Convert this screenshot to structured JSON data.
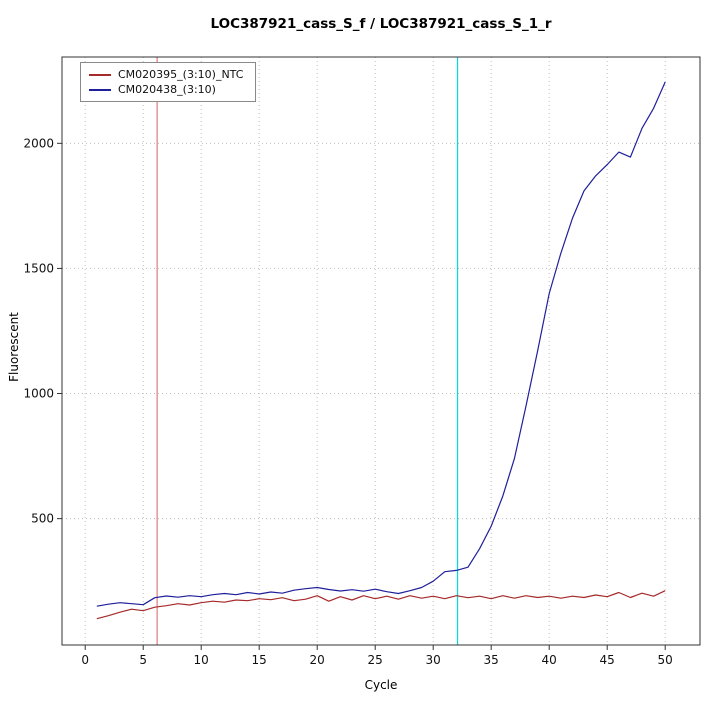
{
  "title": "LOC387921_cass_S_f / LOC387921_cass_S_1_r",
  "chart_data": {
    "type": "line",
    "title": "LOC387921_cass_S_f / LOC387921_cass_S_1_r",
    "xlabel": "Cycle",
    "ylabel": "Fluorescent",
    "x": [
      1,
      2,
      3,
      4,
      5,
      6,
      7,
      8,
      9,
      10,
      11,
      12,
      13,
      14,
      15,
      16,
      17,
      18,
      19,
      20,
      21,
      22,
      23,
      24,
      25,
      26,
      27,
      28,
      29,
      30,
      31,
      32,
      33,
      34,
      35,
      36,
      37,
      38,
      39,
      40,
      41,
      42,
      43,
      44,
      45,
      46,
      47,
      48,
      49,
      50
    ],
    "series": [
      {
        "name": "CM020395_(3:10)_NTC",
        "color": "#a52a2a",
        "values": [
          100,
          112,
          126,
          138,
          132,
          146,
          152,
          160,
          155,
          164,
          170,
          166,
          175,
          172,
          180,
          176,
          184,
          172,
          178,
          192,
          170,
          188,
          175,
          192,
          180,
          190,
          178,
          192,
          182,
          190,
          180,
          192,
          184,
          190,
          180,
          192,
          182,
          192,
          185,
          190,
          182,
          190,
          185,
          195,
          188,
          205,
          185,
          202,
          190,
          212
        ]
      },
      {
        "name": "CM020438_(3:10)",
        "color": "#1f1f9c",
        "values": [
          150,
          158,
          164,
          160,
          156,
          184,
          191,
          186,
          192,
          188,
          196,
          201,
          196,
          205,
          199,
          207,
          202,
          214,
          220,
          225,
          217,
          211,
          216,
          210,
          218,
          208,
          201,
          212,
          225,
          250,
          288,
          293,
          306,
          380,
          470,
          590,
          740,
          950,
          1170,
          1400,
          1560,
          1700,
          1810,
          1870,
          1915,
          1965,
          1945,
          2060,
          2140,
          2245
        ]
      }
    ],
    "x_ticks": [
      0,
      5,
      10,
      15,
      20,
      25,
      30,
      35,
      40,
      45,
      50
    ],
    "y_ticks": [
      500,
      1000,
      1500,
      2000
    ],
    "xlim": [
      -2,
      53
    ],
    "ylim": [
      -5,
      2345
    ],
    "grid": true,
    "legend_position": "top-left",
    "vlines": [
      {
        "x": 6.2,
        "color": "#e07a7a",
        "name": "ntc-threshold-vline"
      },
      {
        "x": 32.1,
        "color": "#00dcdc",
        "name": "ct-threshold-vline"
      }
    ]
  }
}
